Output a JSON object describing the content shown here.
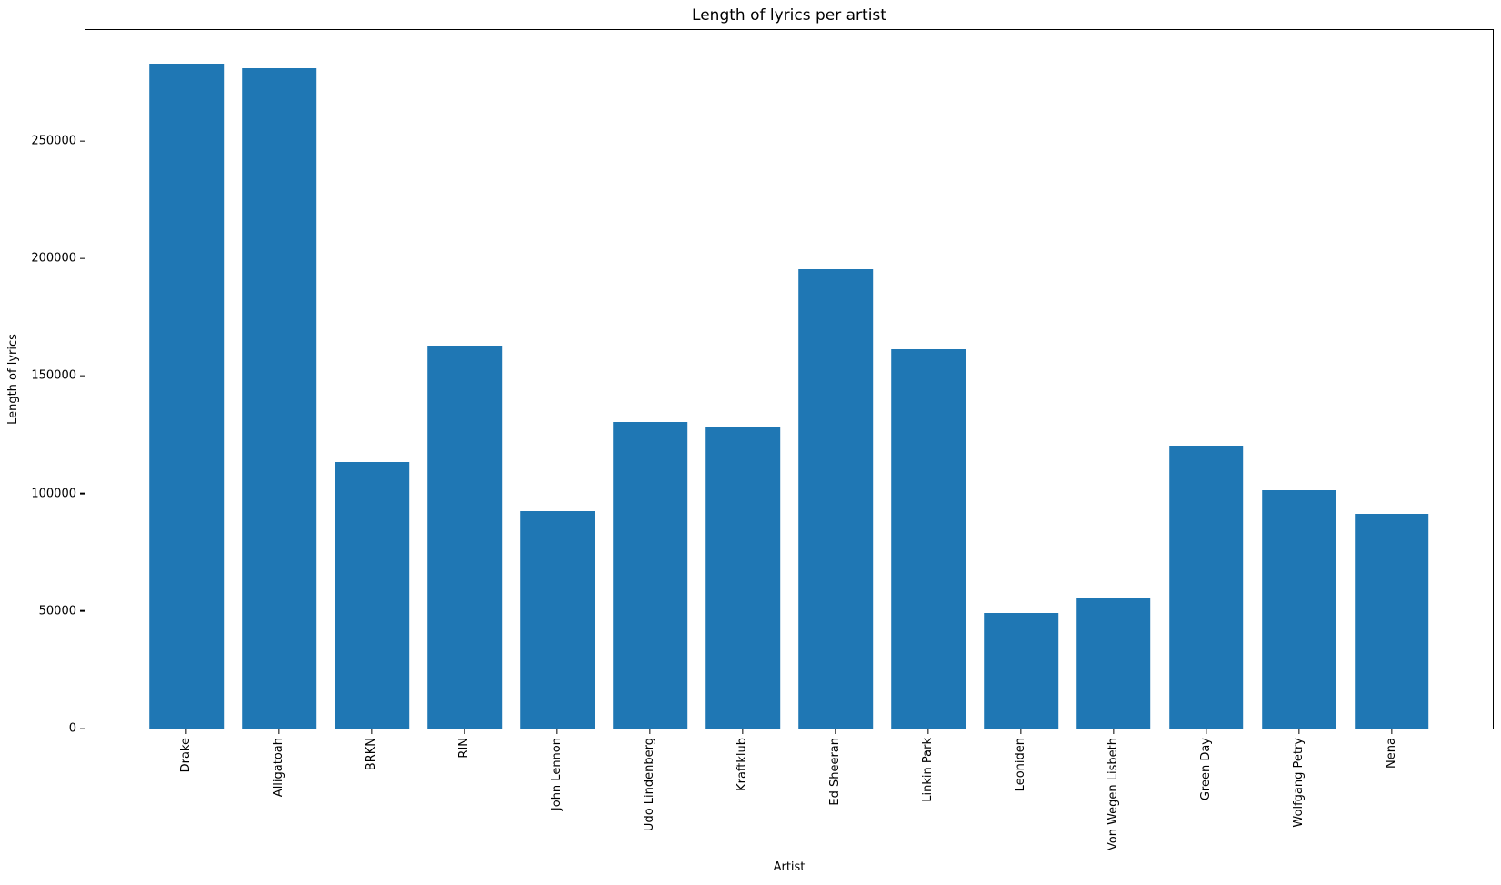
{
  "chart_data": {
    "type": "bar",
    "title": "Length of lyrics per artist",
    "xlabel": "Artist",
    "ylabel": "Length of lyrics",
    "categories": [
      "Drake",
      "Alligatoah",
      "BRKN",
      "RIN",
      "John Lennon",
      "Udo Lindenberg",
      "Kraftklub",
      "Ed Sheeran",
      "Linkin Park",
      "Leoniden",
      "Von Wegen Lisbeth",
      "Green Day",
      "Wolfgang Petry",
      "Nena"
    ],
    "values": [
      283000,
      281000,
      113500,
      163000,
      92500,
      130500,
      128000,
      195500,
      161500,
      49000,
      55500,
      120500,
      101500,
      91500
    ],
    "yticks": [
      0,
      50000,
      100000,
      150000,
      200000,
      250000
    ],
    "ylim": [
      0,
      297150
    ],
    "grid": false,
    "legend": null,
    "bar_color": "#1f77b4",
    "axis_color": "#000000",
    "background_color": "#ffffff",
    "layout": {
      "x_units_min": -1.09,
      "x_units_max": 14.09,
      "bar_width_units": 0.8
    }
  }
}
